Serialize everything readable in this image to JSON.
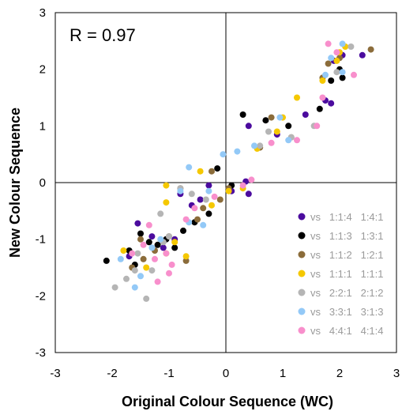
{
  "chart_data": {
    "type": "scatter",
    "xlabel": "Original Colour Sequence (WC)",
    "ylabel": "New Colour Sequence",
    "xlim": [
      -3,
      3
    ],
    "ylim": [
      -3,
      3
    ],
    "xticks": [
      "-3",
      "-2",
      "-1",
      "0",
      "1",
      "2",
      "3"
    ],
    "yticks": [
      "-3",
      "-2",
      "-1",
      "0",
      "1",
      "2",
      "3"
    ],
    "annotation": "R = 0.97",
    "grid": false,
    "legend_position": "bottom-right",
    "series": [
      {
        "name": "vs   1:1:4   1:4:1",
        "color": "#4b0b9e",
        "points": [
          [
            -1.55,
            -0.72
          ],
          [
            -1.3,
            -0.95
          ],
          [
            -1.1,
            -1.15
          ],
          [
            -0.9,
            -1.0
          ],
          [
            -0.6,
            -0.4
          ],
          [
            -0.45,
            -0.3
          ],
          [
            -0.3,
            -0.05
          ],
          [
            0.1,
            -0.15
          ],
          [
            0.4,
            -0.2
          ],
          [
            0.35,
            0.02
          ],
          [
            0.4,
            1.0
          ],
          [
            0.9,
            0.85
          ],
          [
            1.4,
            1.2
          ],
          [
            1.75,
            1.45
          ],
          [
            1.85,
            1.4
          ],
          [
            1.9,
            2.15
          ],
          [
            2.05,
            2.25
          ],
          [
            2.4,
            2.25
          ],
          [
            -1.7,
            -1.3
          ],
          [
            -0.8,
            -0.2
          ]
        ]
      },
      {
        "name": "vs   1:1:3   1:3:1",
        "color": "#000000",
        "points": [
          [
            -2.1,
            -1.38
          ],
          [
            -1.7,
            -1.2
          ],
          [
            -1.5,
            -0.9
          ],
          [
            -1.35,
            -1.05
          ],
          [
            -1.2,
            -1.1
          ],
          [
            -1.05,
            -1.0
          ],
          [
            -0.75,
            -0.85
          ],
          [
            -0.55,
            -0.7
          ],
          [
            -0.3,
            -0.55
          ],
          [
            -0.15,
            0.25
          ],
          [
            0.1,
            -0.05
          ],
          [
            0.3,
            1.2
          ],
          [
            0.7,
            1.1
          ],
          [
            1.1,
            1.0
          ],
          [
            1.65,
            1.3
          ],
          [
            1.85,
            1.8
          ],
          [
            2.0,
            2.0
          ],
          [
            2.05,
            1.85
          ],
          [
            -1.6,
            -1.45
          ],
          [
            -0.9,
            -1.15
          ]
        ]
      },
      {
        "name": "vs   1:1:2   1:2:1",
        "color": "#8b6c3a",
        "points": [
          [
            -1.65,
            -1.5
          ],
          [
            -1.45,
            -1.35
          ],
          [
            -1.25,
            -1.2
          ],
          [
            -1.0,
            -0.95
          ],
          [
            -0.7,
            -1.38
          ],
          [
            -0.5,
            -0.65
          ],
          [
            -0.4,
            -0.45
          ],
          [
            -0.25,
            0.2
          ],
          [
            -0.1,
            -0.3
          ],
          [
            0.05,
            -0.1
          ],
          [
            0.6,
            0.62
          ],
          [
            0.8,
            1.15
          ],
          [
            1.15,
            0.8
          ],
          [
            1.7,
            1.85
          ],
          [
            1.8,
            2.1
          ],
          [
            2.0,
            2.2
          ],
          [
            2.55,
            2.35
          ],
          [
            -0.8,
            -0.1
          ],
          [
            -1.5,
            -1.0
          ]
        ]
      },
      {
        "name": "vs   1:1:1   1:1:1",
        "color": "#f5c800",
        "points": [
          [
            -1.8,
            -1.2
          ],
          [
            -1.4,
            -1.5
          ],
          [
            -1.05,
            -1.25
          ],
          [
            -0.9,
            -1.05
          ],
          [
            -1.05,
            -0.35
          ],
          [
            -1.05,
            -0.05
          ],
          [
            -0.45,
            0.2
          ],
          [
            -0.25,
            -0.4
          ],
          [
            0.05,
            -0.15
          ],
          [
            0.3,
            -0.1
          ],
          [
            0.55,
            0.6
          ],
          [
            0.9,
            0.9
          ],
          [
            1.0,
            1.15
          ],
          [
            1.25,
            1.5
          ],
          [
            1.7,
            1.8
          ],
          [
            1.95,
            2.15
          ],
          [
            2.0,
            2.3
          ],
          [
            2.1,
            2.4
          ],
          [
            -0.7,
            -1.3
          ]
        ]
      },
      {
        "name": "vs   2:2:1   2:1:2",
        "color": "#b5b5b5",
        "points": [
          [
            -1.95,
            -1.85
          ],
          [
            -1.75,
            -1.7
          ],
          [
            -1.6,
            -1.55
          ],
          [
            -1.4,
            -2.05
          ],
          [
            -1.15,
            -0.55
          ],
          [
            -1.0,
            -0.95
          ],
          [
            -0.8,
            -0.1
          ],
          [
            -0.6,
            -0.2
          ],
          [
            -0.35,
            -0.3
          ],
          [
            0.6,
            0.65
          ],
          [
            0.75,
            0.9
          ],
          [
            1.15,
            0.8
          ],
          [
            1.55,
            1.0
          ],
          [
            1.95,
            1.95
          ],
          [
            2.2,
            2.4
          ],
          [
            -1.3,
            -1.55
          ],
          [
            -1.55,
            -1.25
          ],
          [
            -1.1,
            -1.05
          ]
        ]
      },
      {
        "name": "vs   3:3:1   3:1:3",
        "color": "#93c9f7",
        "points": [
          [
            -1.85,
            -1.35
          ],
          [
            -1.6,
            -1.85
          ],
          [
            -1.5,
            -1.65
          ],
          [
            -1.15,
            -1.0
          ],
          [
            -0.8,
            -0.15
          ],
          [
            -0.65,
            -0.7
          ],
          [
            -0.4,
            -0.75
          ],
          [
            -0.3,
            -0.15
          ],
          [
            -0.05,
            0.5
          ],
          [
            0.2,
            0.55
          ],
          [
            0.5,
            0.65
          ],
          [
            0.95,
            1.15
          ],
          [
            1.1,
            0.75
          ],
          [
            1.75,
            1.9
          ],
          [
            1.85,
            2.2
          ],
          [
            2.05,
            2.45
          ],
          [
            2.05,
            1.95
          ],
          [
            -0.65,
            0.27
          ],
          [
            -1.3,
            -1.15
          ]
        ]
      },
      {
        "name": "vs   4:4:1   4:1:4",
        "color": "#f88fcc",
        "points": [
          [
            -1.65,
            -1.25
          ],
          [
            -1.45,
            -1.1
          ],
          [
            -1.25,
            -1.35
          ],
          [
            -1.05,
            -1.25
          ],
          [
            -1.0,
            -1.6
          ],
          [
            -0.95,
            -1.45
          ],
          [
            -0.7,
            -0.65
          ],
          [
            -0.55,
            -0.45
          ],
          [
            -0.2,
            -0.25
          ],
          [
            0.3,
            -0.05
          ],
          [
            0.45,
            0.05
          ],
          [
            0.8,
            0.7
          ],
          [
            1.25,
            0.75
          ],
          [
            1.6,
            1.0
          ],
          [
            1.7,
            1.5
          ],
          [
            1.95,
            2.3
          ],
          [
            2.25,
            1.9
          ],
          [
            1.8,
            2.45
          ],
          [
            -1.2,
            -1.75
          ],
          [
            -1.35,
            -0.75
          ]
        ]
      }
    ]
  }
}
